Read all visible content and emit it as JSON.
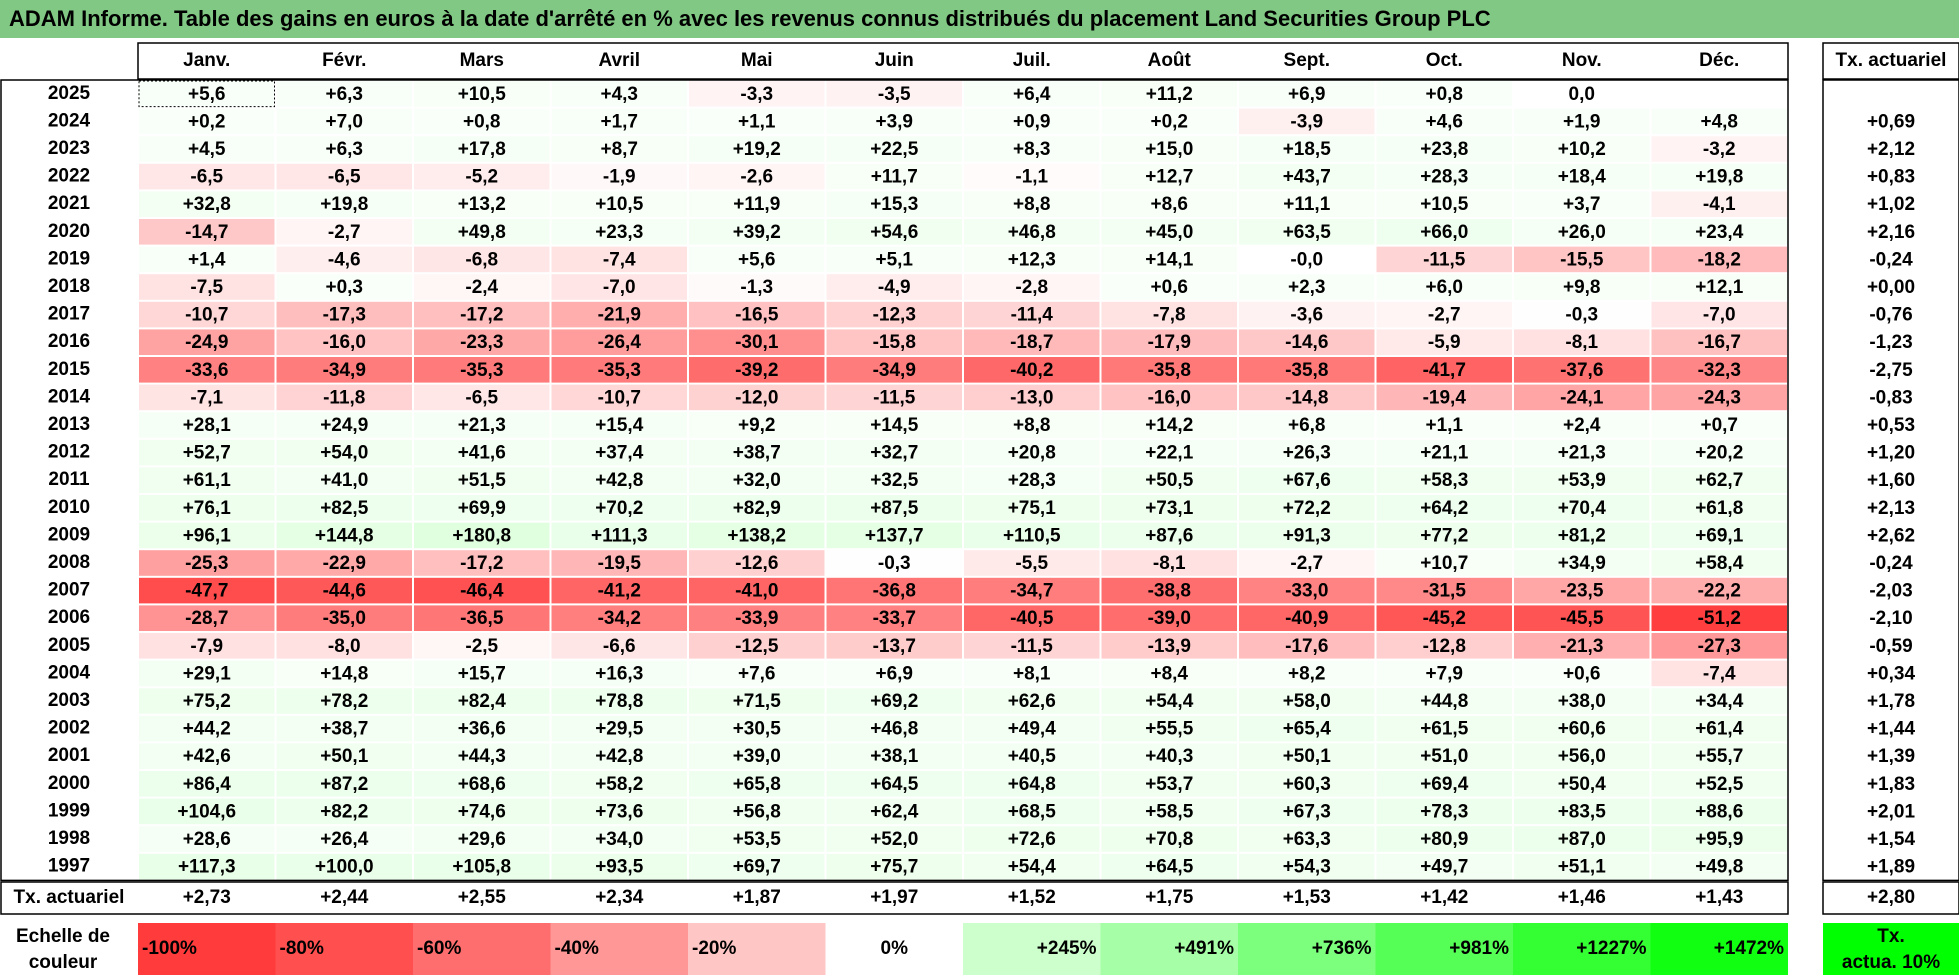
{
  "title": "ADAM Informe. Table des gains en euros à la date d'arrêté en % avec les revenus connus distribués du placement Land Securities Group PLC",
  "colors": {
    "title_bg": "#80c883",
    "neg_max": "#ff3333",
    "pos_max": "#00ff00",
    "neutral": "#ffffff"
  },
  "chart_data": {
    "type": "heatmap",
    "columns": [
      "Janv.",
      "Févr.",
      "Mars",
      "Avril",
      "Mai",
      "Juin",
      "Juil.",
      "Août",
      "Sept.",
      "Oct.",
      "Nov.",
      "Déc."
    ],
    "annual_header": "Tx. actuariel",
    "rows": [
      {
        "year": "2025",
        "values": [
          "+5,6",
          "+6,3",
          "+10,5",
          "+4,3",
          "-3,3",
          "-3,5",
          "+6,4",
          "+11,2",
          "+6,9",
          "+0,8",
          "0,0",
          ""
        ],
        "annual": ""
      },
      {
        "year": "2024",
        "values": [
          "+0,2",
          "+7,0",
          "+0,8",
          "+1,7",
          "+1,1",
          "+3,9",
          "+0,9",
          "+0,2",
          "-3,9",
          "+4,6",
          "+1,9",
          "+4,8"
        ],
        "annual": "+0,69"
      },
      {
        "year": "2023",
        "values": [
          "+4,5",
          "+6,3",
          "+17,8",
          "+8,7",
          "+19,2",
          "+22,5",
          "+8,3",
          "+15,0",
          "+18,5",
          "+23,8",
          "+10,2",
          "-3,2"
        ],
        "annual": "+2,12"
      },
      {
        "year": "2022",
        "values": [
          "-6,5",
          "-6,5",
          "-5,2",
          "-1,9",
          "-2,6",
          "+11,7",
          "-1,1",
          "+12,7",
          "+43,7",
          "+28,3",
          "+18,4",
          "+19,8"
        ],
        "annual": "+0,83"
      },
      {
        "year": "2021",
        "values": [
          "+32,8",
          "+19,8",
          "+13,2",
          "+10,5",
          "+11,9",
          "+15,3",
          "+8,8",
          "+8,6",
          "+11,1",
          "+10,5",
          "+3,7",
          "-4,1"
        ],
        "annual": "+1,02"
      },
      {
        "year": "2020",
        "values": [
          "-14,7",
          "-2,7",
          "+49,8",
          "+23,3",
          "+39,2",
          "+54,6",
          "+46,8",
          "+45,0",
          "+63,5",
          "+66,0",
          "+26,0",
          "+23,4"
        ],
        "annual": "+2,16"
      },
      {
        "year": "2019",
        "values": [
          "+1,4",
          "-4,6",
          "-6,8",
          "-7,4",
          "+5,6",
          "+5,1",
          "+12,3",
          "+14,1",
          "-0,0",
          "-11,5",
          "-15,5",
          "-18,2"
        ],
        "annual": "-0,24"
      },
      {
        "year": "2018",
        "values": [
          "-7,5",
          "+0,3",
          "-2,4",
          "-7,0",
          "-1,3",
          "-4,9",
          "-2,8",
          "+0,6",
          "+2,3",
          "+6,0",
          "+9,8",
          "+12,1"
        ],
        "annual": "+0,00"
      },
      {
        "year": "2017",
        "values": [
          "-10,7",
          "-17,3",
          "-17,2",
          "-21,9",
          "-16,5",
          "-12,3",
          "-11,4",
          "-7,8",
          "-3,6",
          "-2,7",
          "-0,3",
          "-7,0"
        ],
        "annual": "-0,76"
      },
      {
        "year": "2016",
        "values": [
          "-24,9",
          "-16,0",
          "-23,3",
          "-26,4",
          "-30,1",
          "-15,8",
          "-18,7",
          "-17,9",
          "-14,6",
          "-5,9",
          "-8,1",
          "-16,7"
        ],
        "annual": "-1,23"
      },
      {
        "year": "2015",
        "values": [
          "-33,6",
          "-34,9",
          "-35,3",
          "-35,3",
          "-39,2",
          "-34,9",
          "-40,2",
          "-35,8",
          "-35,8",
          "-41,7",
          "-37,6",
          "-32,3"
        ],
        "annual": "-2,75"
      },
      {
        "year": "2014",
        "values": [
          "-7,1",
          "-11,8",
          "-6,5",
          "-10,7",
          "-12,0",
          "-11,5",
          "-13,0",
          "-16,0",
          "-14,8",
          "-19,4",
          "-24,1",
          "-24,3"
        ],
        "annual": "-0,83"
      },
      {
        "year": "2013",
        "values": [
          "+28,1",
          "+24,9",
          "+21,3",
          "+15,4",
          "+9,2",
          "+14,5",
          "+8,8",
          "+14,2",
          "+6,8",
          "+1,1",
          "+2,4",
          "+0,7"
        ],
        "annual": "+0,53"
      },
      {
        "year": "2012",
        "values": [
          "+52,7",
          "+54,0",
          "+41,6",
          "+37,4",
          "+38,7",
          "+32,7",
          "+20,8",
          "+22,1",
          "+26,3",
          "+21,1",
          "+21,3",
          "+20,2"
        ],
        "annual": "+1,20"
      },
      {
        "year": "2011",
        "values": [
          "+61,1",
          "+41,0",
          "+51,5",
          "+42,8",
          "+32,0",
          "+32,5",
          "+28,3",
          "+50,5",
          "+67,6",
          "+58,3",
          "+53,9",
          "+62,7"
        ],
        "annual": "+1,60"
      },
      {
        "year": "2010",
        "values": [
          "+76,1",
          "+82,5",
          "+69,9",
          "+70,2",
          "+82,9",
          "+87,5",
          "+75,1",
          "+73,1",
          "+72,2",
          "+64,2",
          "+70,4",
          "+61,8"
        ],
        "annual": "+2,13"
      },
      {
        "year": "2009",
        "values": [
          "+96,1",
          "+144,8",
          "+180,8",
          "+111,3",
          "+138,2",
          "+137,7",
          "+110,5",
          "+87,6",
          "+91,3",
          "+77,2",
          "+81,2",
          "+69,1"
        ],
        "annual": "+2,62"
      },
      {
        "year": "2008",
        "values": [
          "-25,3",
          "-22,9",
          "-17,2",
          "-19,5",
          "-12,6",
          "-0,3",
          "-5,5",
          "-8,1",
          "-2,7",
          "+10,7",
          "+34,9",
          "+58,4"
        ],
        "annual": "-0,24"
      },
      {
        "year": "2007",
        "values": [
          "-47,7",
          "-44,6",
          "-46,4",
          "-41,2",
          "-41,0",
          "-36,8",
          "-34,7",
          "-38,8",
          "-33,0",
          "-31,5",
          "-23,5",
          "-22,2"
        ],
        "annual": "-2,03"
      },
      {
        "year": "2006",
        "values": [
          "-28,7",
          "-35,0",
          "-36,5",
          "-34,2",
          "-33,9",
          "-33,7",
          "-40,5",
          "-39,0",
          "-40,9",
          "-45,2",
          "-45,5",
          "-51,2"
        ],
        "annual": "-2,10"
      },
      {
        "year": "2005",
        "values": [
          "-7,9",
          "-8,0",
          "-2,5",
          "-6,6",
          "-12,5",
          "-13,7",
          "-11,5",
          "-13,9",
          "-17,6",
          "-12,8",
          "-21,3",
          "-27,3"
        ],
        "annual": "-0,59"
      },
      {
        "year": "2004",
        "values": [
          "+29,1",
          "+14,8",
          "+15,7",
          "+16,3",
          "+7,6",
          "+6,9",
          "+8,1",
          "+8,4",
          "+8,2",
          "+7,9",
          "+0,6",
          "-7,4"
        ],
        "annual": "+0,34"
      },
      {
        "year": "2003",
        "values": [
          "+75,2",
          "+78,2",
          "+82,4",
          "+78,8",
          "+71,5",
          "+69,2",
          "+62,6",
          "+54,4",
          "+58,0",
          "+44,8",
          "+38,0",
          "+34,4"
        ],
        "annual": "+1,78"
      },
      {
        "year": "2002",
        "values": [
          "+44,2",
          "+38,7",
          "+36,6",
          "+29,5",
          "+30,5",
          "+46,8",
          "+49,4",
          "+55,5",
          "+65,4",
          "+61,5",
          "+60,6",
          "+61,4"
        ],
        "annual": "+1,44"
      },
      {
        "year": "2001",
        "values": [
          "+42,6",
          "+50,1",
          "+44,3",
          "+42,8",
          "+39,0",
          "+38,1",
          "+40,5",
          "+40,3",
          "+50,1",
          "+51,0",
          "+56,0",
          "+55,7"
        ],
        "annual": "+1,39"
      },
      {
        "year": "2000",
        "values": [
          "+86,4",
          "+87,2",
          "+68,6",
          "+58,2",
          "+65,8",
          "+64,5",
          "+64,8",
          "+53,7",
          "+60,3",
          "+69,4",
          "+50,4",
          "+52,5"
        ],
        "annual": "+1,83"
      },
      {
        "year": "1999",
        "values": [
          "+104,6",
          "+82,2",
          "+74,6",
          "+73,6",
          "+56,8",
          "+62,4",
          "+68,5",
          "+58,5",
          "+67,3",
          "+78,3",
          "+83,5",
          "+88,6"
        ],
        "annual": "+2,01"
      },
      {
        "year": "1998",
        "values": [
          "+28,6",
          "+26,4",
          "+29,6",
          "+34,0",
          "+53,5",
          "+52,0",
          "+72,6",
          "+70,8",
          "+63,3",
          "+80,9",
          "+87,0",
          "+95,9"
        ],
        "annual": "+1,54"
      },
      {
        "year": "1997",
        "values": [
          "+117,3",
          "+100,0",
          "+105,8",
          "+93,5",
          "+69,7",
          "+75,7",
          "+54,4",
          "+64,5",
          "+54,3",
          "+49,7",
          "+51,1",
          "+49,8"
        ],
        "annual": "+1,89"
      }
    ],
    "summary": {
      "label": "Tx. actuariel",
      "values": [
        "+2,73",
        "+2,44",
        "+2,55",
        "+2,34",
        "+1,87",
        "+1,97",
        "+1,52",
        "+1,75",
        "+1,53",
        "+1,42",
        "+1,46",
        "+1,43"
      ],
      "annual": "+2,80"
    },
    "scale": {
      "label_line1": "Echelle de",
      "label_line2": "couleur",
      "items": [
        {
          "label": "-100%",
          "color": "#ff3b3b"
        },
        {
          "label": "-80%",
          "color": "#ff4f4f"
        },
        {
          "label": "-60%",
          "color": "#ff6e6e"
        },
        {
          "label": "-40%",
          "color": "#ff9797"
        },
        {
          "label": "-20%",
          "color": "#ffc6c6"
        },
        {
          "label": "0%",
          "color": "#ffffff"
        },
        {
          "label": "+245%",
          "color": "#ccffcc"
        },
        {
          "label": "+491%",
          "color": "#a6ffa6"
        },
        {
          "label": "+736%",
          "color": "#7cff7c"
        },
        {
          "label": "+981%",
          "color": "#55ff55"
        },
        {
          "label": "+1227%",
          "color": "#33ff33"
        },
        {
          "label": "+1472%",
          "color": "#11ff11"
        }
      ],
      "annual_line1": "Tx.",
      "annual_line2": "actua. 10%",
      "annual_color": "#00ff00"
    }
  }
}
